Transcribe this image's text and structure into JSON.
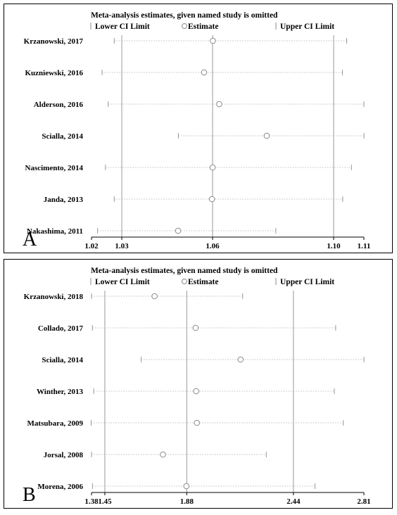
{
  "chart_data": [
    {
      "type": "forest",
      "panel": "A",
      "title": "Meta-analysis estimates, given named study is omitted",
      "legend": [
        "Lower CI Limit",
        "Estimate",
        "Upper CI Limit"
      ],
      "xlim": [
        1.02,
        1.11
      ],
      "ticks": [
        {
          "value": 1.02,
          "label": "1.02"
        },
        {
          "value": 1.03,
          "label": "1.03"
        },
        {
          "value": 1.06,
          "label": "1.06"
        },
        {
          "value": 1.1,
          "label": "1.10"
        },
        {
          "value": 1.11,
          "label": "1.11"
        }
      ],
      "reference_lines": [
        1.03,
        1.06,
        1.1
      ],
      "studies": [
        {
          "label": "Krzanowski, 2017",
          "lower": 1.0275,
          "estimate": 1.0601,
          "upper": 1.1043
        },
        {
          "label": "Kuzniewski, 2016",
          "lower": 1.0235,
          "estimate": 1.0572,
          "upper": 1.1029
        },
        {
          "label": "Alderson, 2016",
          "lower": 1.0255,
          "estimate": 1.0622,
          "upper": 1.11
        },
        {
          "label": "Scialla, 2014",
          "lower": 1.0487,
          "estimate": 1.0779,
          "upper": 1.11
        },
        {
          "label": "Nascimento, 2014",
          "lower": 1.0246,
          "estimate": 1.06,
          "upper": 1.1059
        },
        {
          "label": "Janda, 2013",
          "lower": 1.0275,
          "estimate": 1.0598,
          "upper": 1.103
        },
        {
          "label": "Nakashima, 2011",
          "lower": 1.022,
          "estimate": 1.0486,
          "upper": 1.0809
        }
      ]
    },
    {
      "type": "forest",
      "panel": "B",
      "title": "Meta-analysis estimates, given named study is omitted",
      "legend": [
        "Lower CI Limit",
        "Estimate",
        "Upper CI Limit"
      ],
      "xlim": [
        1.38,
        2.81
      ],
      "ticks": [
        {
          "value": 1.38,
          "label": "1.38"
        },
        {
          "value": 1.45,
          "label": "1.45"
        },
        {
          "value": 1.88,
          "label": "1.88"
        },
        {
          "value": 2.44,
          "label": "2.44"
        },
        {
          "value": 2.81,
          "label": "2.81"
        }
      ],
      "reference_lines": [
        1.45,
        1.88,
        2.44
      ],
      "studies": [
        {
          "label": "Krzanowski, 2018",
          "lower": 1.38,
          "estimate": 1.7112,
          "upper": 2.1734
        },
        {
          "label": "Collado, 2017",
          "lower": 1.3849,
          "estimate": 1.9263,
          "upper": 2.6617
        },
        {
          "label": "Scialla, 2014",
          "lower": 1.6409,
          "estimate": 2.1626,
          "upper": 2.81
        },
        {
          "label": "Winther, 2013",
          "lower": 1.3916,
          "estimate": 1.9296,
          "upper": 2.6549
        },
        {
          "label": "Matsubara, 2009",
          "lower": 1.3781,
          "estimate": 1.933,
          "upper": 2.7018
        },
        {
          "label": "Jorsal, 2008",
          "lower": 1.38,
          "estimate": 1.7549,
          "upper": 2.2977
        },
        {
          "label": "Morena, 2006",
          "lower": 1.3849,
          "estimate": 1.8781,
          "upper": 2.5534
        }
      ]
    }
  ]
}
